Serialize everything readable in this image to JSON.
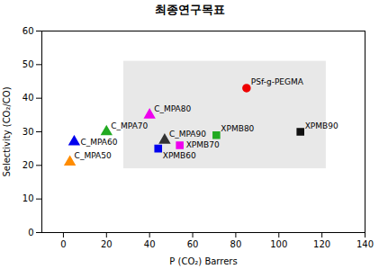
{
  "chart_data": {
    "type": "scatter",
    "title": "최종연구목표",
    "xlabel": "P (CO₂) Barrers",
    "ylabel": "Selectivity (CO₂/CO)",
    "xlim": [
      -10,
      140
    ],
    "ylim": [
      0,
      60
    ],
    "xticks": [
      0,
      20,
      40,
      60,
      80,
      100,
      120,
      140
    ],
    "yticks": [
      0,
      10,
      20,
      30,
      40,
      50,
      60
    ],
    "grid": false,
    "shaded_region": {
      "x1": 28,
      "x2": 122,
      "y1": 19,
      "y2": 51,
      "color": "#cccccc"
    },
    "points": [
      {
        "label": "C_MPA50",
        "x": 3,
        "y": 21,
        "marker": "triangle",
        "color": "#FF8C00"
      },
      {
        "label": "C_MPA60",
        "x": 5,
        "y": 27,
        "marker": "triangle",
        "color": "#0000EE"
      },
      {
        "label": "C_MPA70",
        "x": 20,
        "y": 30,
        "marker": "triangle",
        "color": "#22AA22"
      },
      {
        "label": "C_MPA80",
        "x": 40,
        "y": 35,
        "marker": "triangle",
        "color": "#EE00EE"
      },
      {
        "label": "C_MPA90",
        "x": 47,
        "y": 27.5,
        "marker": "triangle",
        "color": "#333333"
      },
      {
        "label": "XPMB60",
        "x": 44,
        "y": 25,
        "marker": "square",
        "color": "#0000EE"
      },
      {
        "label": "XPMB70",
        "x": 54,
        "y": 26,
        "marker": "square",
        "color": "#EE00EE"
      },
      {
        "label": "XPMB80",
        "x": 71,
        "y": 29,
        "marker": "square",
        "color": "#22AA22"
      },
      {
        "label": "XPMB90",
        "x": 110,
        "y": 30,
        "marker": "square",
        "color": "#111111"
      },
      {
        "label": "PSf-g-PEGMA",
        "x": 85,
        "y": 43,
        "marker": "circle",
        "color": "#EE0000"
      }
    ]
  }
}
